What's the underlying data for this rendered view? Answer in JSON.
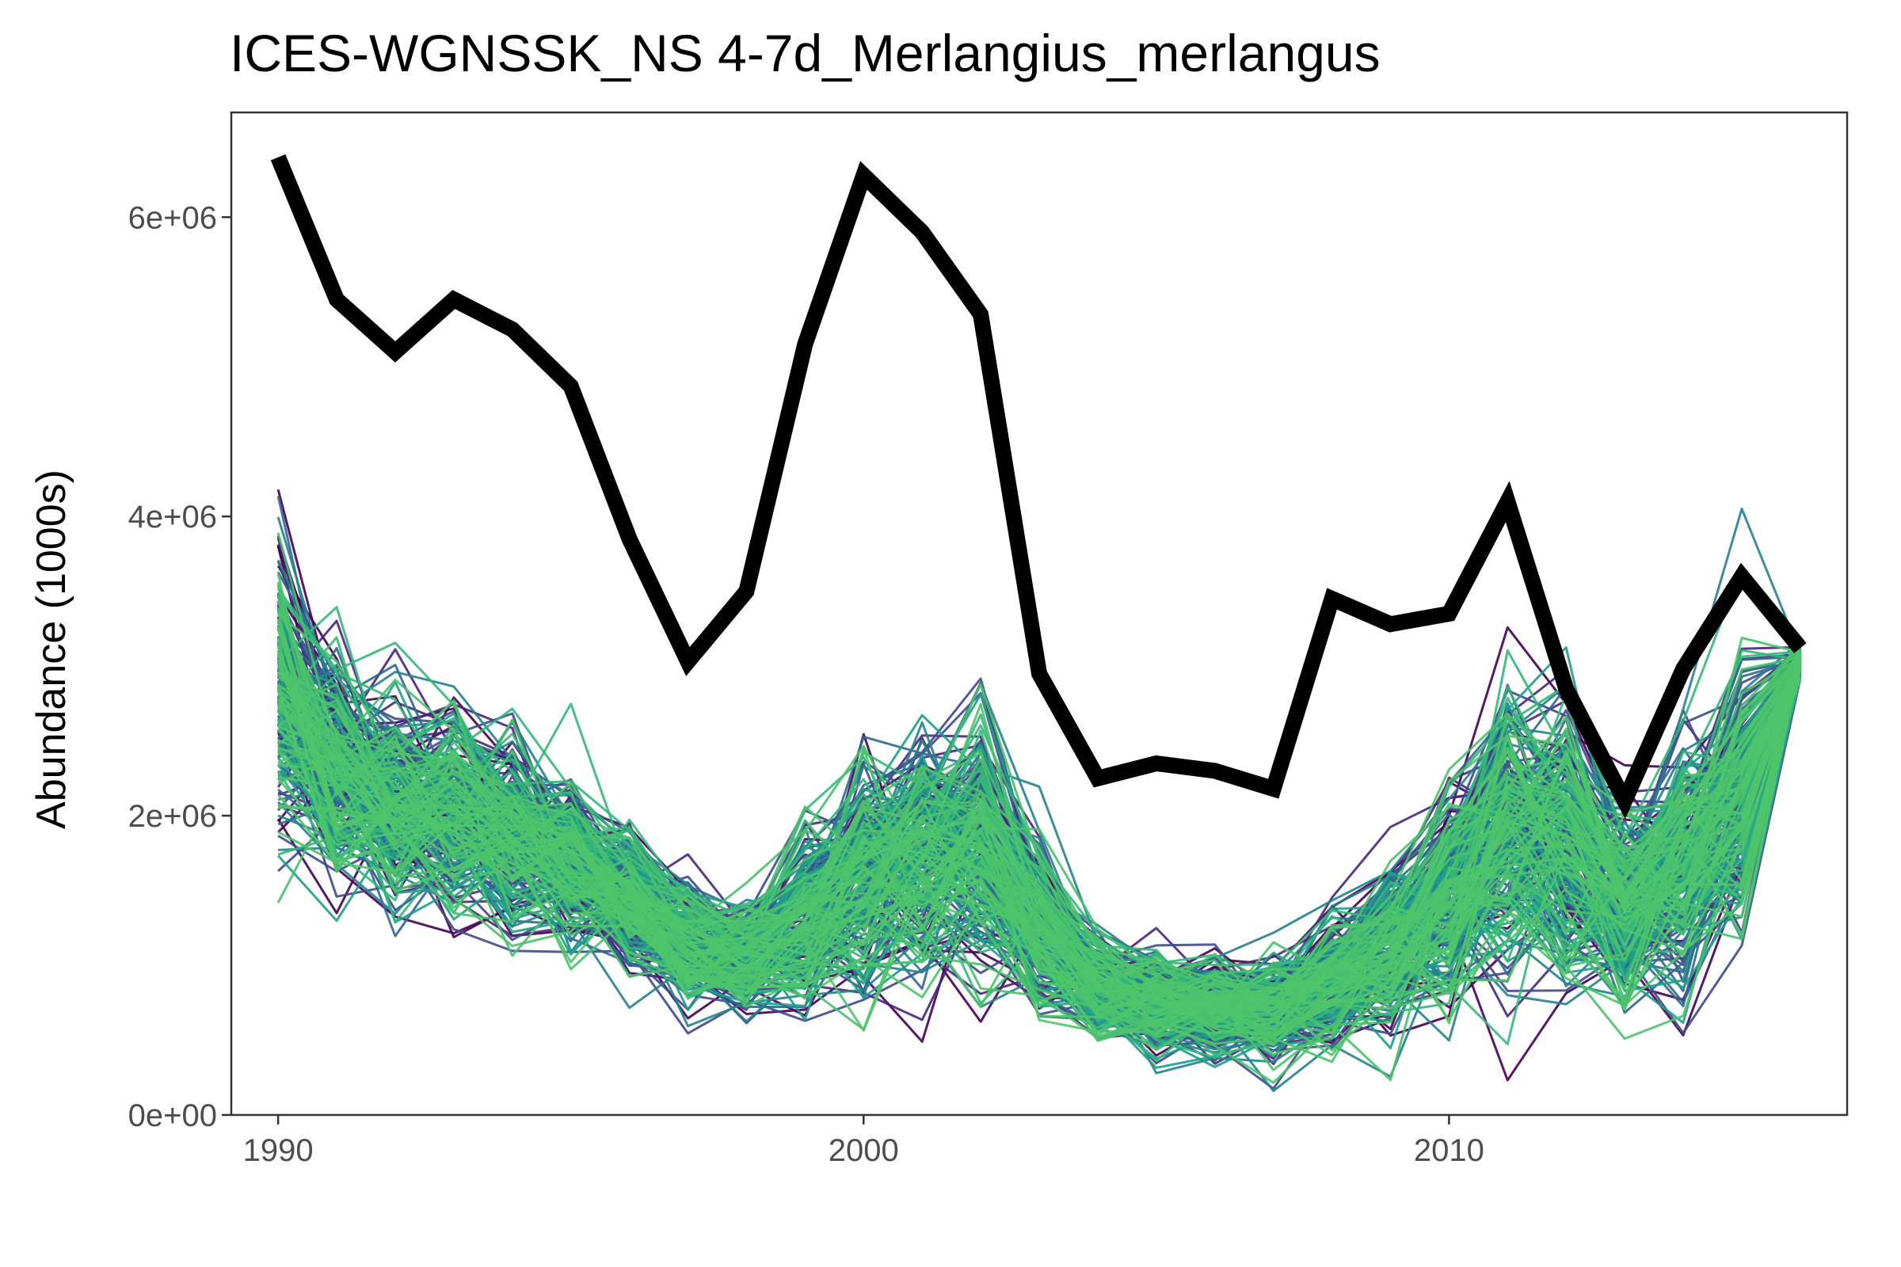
{
  "chart_data": {
    "type": "line",
    "title": "ICES-WGNSSK_NS 4-7d_Merlangius_merlangus",
    "xlabel": "",
    "ylabel": "Abundance (1000s)",
    "xlim": [
      1989.2,
      2016.8
    ],
    "ylim": [
      0,
      6700000
    ],
    "x_ticks": [
      1990,
      2000,
      2010
    ],
    "x_tick_labels": [
      "1990",
      "2000",
      "2010"
    ],
    "y_ticks": [
      0,
      2000000,
      4000000,
      6000000
    ],
    "y_tick_labels": [
      "0e+00",
      "2e+06",
      "4e+06",
      "6e+06"
    ],
    "grid": false,
    "legend": "none",
    "x": [
      1990,
      1991,
      1992,
      1993,
      1994,
      1995,
      1996,
      1997,
      1998,
      1999,
      2000,
      2001,
      2002,
      2003,
      2004,
      2005,
      2006,
      2007,
      2008,
      2009,
      2010,
      2011,
      2012,
      2013,
      2014,
      2015,
      2016
    ],
    "observed": {
      "color": "#000000",
      "values": [
        6400000,
        5450000,
        5100000,
        5450000,
        5250000,
        4870000,
        3850000,
        3030000,
        3500000,
        5150000,
        6280000,
        5900000,
        5350000,
        2950000,
        2250000,
        2350000,
        2300000,
        2180000,
        3450000,
        3280000,
        3350000,
        4100000,
        2850000,
        2100000,
        2980000,
        3600000,
        3120000
      ]
    },
    "simulated": {
      "count": 240,
      "colors": [
        "#440154",
        "#482878",
        "#3e4a89",
        "#31688e",
        "#26828e",
        "#1f9e89",
        "#35b779",
        "#4ac16d",
        "#4fc46a"
      ],
      "center": [
        2850000,
        2300000,
        2100000,
        2000000,
        1850000,
        1700000,
        1450000,
        1150000,
        1050000,
        1300000,
        1600000,
        1750000,
        1800000,
        1250000,
        850000,
        750000,
        720000,
        700000,
        900000,
        1150000,
        1450000,
        1900000,
        1800000,
        1350000,
        1650000,
        2150000,
        3050000
      ],
      "spread": [
        0.22,
        0.2,
        0.2,
        0.2,
        0.2,
        0.2,
        0.2,
        0.2,
        0.2,
        0.25,
        0.28,
        0.28,
        0.28,
        0.25,
        0.25,
        0.27,
        0.27,
        0.28,
        0.3,
        0.3,
        0.3,
        0.3,
        0.3,
        0.3,
        0.3,
        0.25,
        0.02
      ]
    }
  }
}
